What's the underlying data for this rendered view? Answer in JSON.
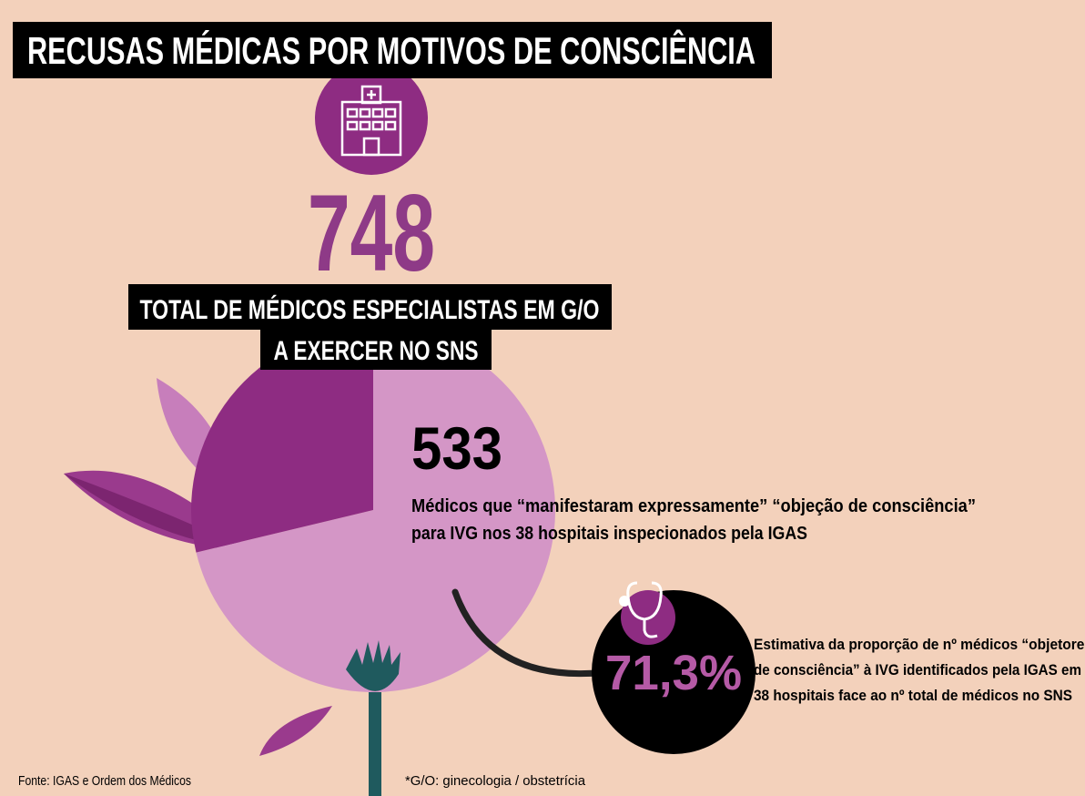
{
  "title": "RECUSAS MÉDICAS POR MOTIVOS DE CONSCIÊNCIA",
  "total": {
    "value": 748,
    "label_lines": [
      "TOTAL DE MÉDICOS ESPECIALISTAS EM G/O",
      "A EXERCER NO SNS"
    ]
  },
  "objectors": {
    "value": 533,
    "description_lines": [
      "Médicos que “manifestaram expressamente” “objeção de consciência”",
      "para IVG nos 38 hospitais inspecionados pela IGAS"
    ]
  },
  "share": {
    "value": 71.3,
    "label": "71,3%",
    "description_lines": [
      "Estimativa da proporção de nº médicos “objetores",
      "de consciência” à IVG identificados pela IGAS em",
      "38 hospitais face ao nº total de médicos no SNS"
    ]
  },
  "source": "Fonte: IGAS e Ordem dos Médicos",
  "footnote": "*G/O: ginecologia / obstetrícia"
}
